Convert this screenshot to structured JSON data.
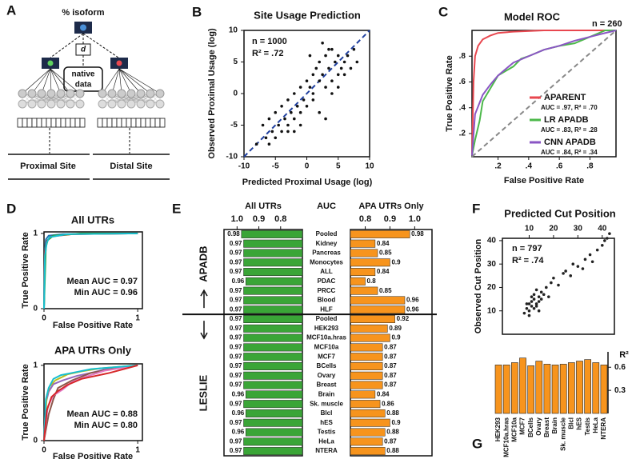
{
  "diagram": {
    "panel": "A",
    "title": "% isoform",
    "d": "d",
    "native_data": [
      "native",
      "data"
    ],
    "proximal": "Proximal Site",
    "distal": "Distal Site"
  },
  "chart_data": [
    {
      "panel": "B",
      "type": "scatter",
      "title": "Site Usage Prediction",
      "xlabel": "Predicted Proximal Usage (log)",
      "ylabel": "Observed Proximal Usage (log)",
      "annotations": [
        "n = 1000",
        "R² = .72"
      ],
      "color": "#111111",
      "diagonal": true,
      "diagonal_color": "#1f3f9f",
      "xlim": [
        -10,
        10
      ],
      "ylim": [
        -10,
        10
      ],
      "xticks": [
        -10,
        -5,
        0,
        5,
        10
      ],
      "yticks": [
        -10,
        -5,
        0,
        5,
        10
      ],
      "x": [
        -8,
        -7,
        -6.5,
        -6,
        -5.5,
        -5,
        -5,
        -4.5,
        -4,
        -4,
        -3.5,
        -3,
        -3,
        -2.5,
        -2,
        -2,
        -1.5,
        -1,
        -1,
        -0.5,
        0,
        0,
        0.5,
        1,
        1,
        1.5,
        2,
        2,
        2.5,
        3,
        3,
        3.5,
        4,
        4,
        4.5,
        5,
        5,
        5.5,
        6,
        6.5,
        7,
        7.5,
        8,
        -3,
        -1,
        1,
        2,
        3,
        4,
        5,
        2.5,
        3.5,
        6,
        -6,
        -2,
        0.5
      ],
      "values": [
        -8,
        -5,
        -7,
        -4,
        -6,
        -3,
        -7,
        -5,
        -2,
        -6,
        -4,
        -1,
        -5,
        -3,
        0,
        -4,
        -2,
        1,
        -3,
        -1,
        2,
        -2,
        1,
        3,
        0,
        4,
        2,
        5,
        3,
        6,
        1,
        4,
        7,
        2,
        5,
        3,
        6,
        4,
        5,
        6,
        4,
        7,
        5,
        -6,
        -5,
        -1,
        -3,
        -4,
        0,
        1,
        8,
        7,
        3,
        -8,
        -6,
        6
      ]
    },
    {
      "panel": "C",
      "type": "line",
      "title": "Model ROC",
      "xlabel": "False Positive Rate",
      "ylabel": "True Positive Rate",
      "annotations": [
        "n = 260"
      ],
      "diagonal": true,
      "diagonal_color": "#888888",
      "xlim": [
        0.03,
        0.97
      ],
      "ylim": [
        0.02,
        1.0
      ],
      "xticks": [
        {
          "value": 0.2,
          "label": ".2"
        },
        {
          "value": 0.4,
          "label": ".4"
        },
        {
          "value": 0.6,
          "label": ".6"
        },
        {
          "value": 0.8,
          "label": ".8"
        }
      ],
      "yticks": [
        {
          "value": 0.2,
          "label": ".2"
        },
        {
          "value": 0.4,
          "label": ".4"
        },
        {
          "value": 0.6,
          "label": ".6"
        },
        {
          "value": 0.8,
          "label": ".8"
        }
      ],
      "series": [
        {
          "name": "APARENT",
          "note": "AUC = .97, R² = .70",
          "color": "#e8474f",
          "x": [
            0.03,
            0.04,
            0.05,
            0.07,
            0.1,
            0.15,
            0.2,
            0.3,
            0.5,
            0.97
          ],
          "values": [
            0.03,
            0.6,
            0.8,
            0.88,
            0.93,
            0.96,
            0.98,
            0.99,
            1,
            1
          ]
        },
        {
          "name": "LR APADB",
          "note": "AUC = .83, R² = .28",
          "color": "#4cb84a",
          "x": [
            0.03,
            0.05,
            0.08,
            0.1,
            0.15,
            0.2,
            0.3,
            0.35,
            0.4,
            0.5,
            0.6,
            0.7,
            0.8,
            0.9,
            0.97
          ],
          "values": [
            0.03,
            0.15,
            0.3,
            0.45,
            0.55,
            0.65,
            0.72,
            0.78,
            0.8,
            0.85,
            0.88,
            0.9,
            0.95,
            1,
            1
          ]
        },
        {
          "name": "CNN APADB",
          "note": "AUC = .84, R² = .34",
          "color": "#8a55c4",
          "x": [
            0.03,
            0.05,
            0.1,
            0.15,
            0.2,
            0.3,
            0.4,
            0.5,
            0.6,
            0.7,
            0.8,
            0.9,
            0.97
          ],
          "values": [
            0.03,
            0.35,
            0.5,
            0.58,
            0.65,
            0.75,
            0.8,
            0.85,
            0.88,
            0.92,
            0.95,
            0.98,
            1
          ]
        }
      ]
    },
    {
      "panel": "D",
      "type": "line",
      "title": "All UTRs",
      "title_color": "#3aa537",
      "xlabel": "False Positive Rate",
      "ylabel": "True Positive Rate",
      "annotations": [
        "Mean AUC = 0.97",
        "Min AUC = 0.96"
      ],
      "xlim": [
        0,
        1.05
      ],
      "ylim": [
        0,
        1.02
      ],
      "xticks": [
        0,
        1
      ],
      "yticks": [
        0,
        1
      ],
      "series": [
        {
          "color": "#1f77b4",
          "x": [
            0,
            0.01,
            0.02,
            0.05,
            0.2,
            1
          ],
          "values": [
            0,
            0.8,
            0.92,
            0.97,
            0.99,
            1
          ]
        },
        {
          "color": "#d62728",
          "x": [
            0,
            0.01,
            0.03,
            0.08,
            0.3,
            1
          ],
          "values": [
            0,
            0.75,
            0.9,
            0.96,
            0.99,
            1
          ]
        },
        {
          "color": "#2ca02c",
          "x": [
            0,
            0.02,
            0.04,
            0.1,
            0.4,
            1
          ],
          "values": [
            0,
            0.82,
            0.91,
            0.97,
            1,
            1
          ]
        },
        {
          "color": "#17becf",
          "x": [
            0,
            0.01,
            0.03,
            0.06,
            0.25,
            1
          ],
          "values": [
            0,
            0.7,
            0.88,
            0.95,
            0.99,
            1
          ]
        }
      ]
    },
    {
      "type": "line",
      "title": "APA UTRs Only",
      "title_color": "#f7941d",
      "xlabel": "False Positive Rate",
      "ylabel": "True Positive Rate",
      "annotations": [
        "Mean AUC = 0.88",
        "Min AUC = 0.80"
      ],
      "xlim": [
        0,
        1.05
      ],
      "ylim": [
        0,
        1.02
      ],
      "xticks": [
        0,
        1
      ],
      "yticks": [
        0,
        1
      ],
      "series": [
        {
          "color": "#9467bd",
          "x": [
            0,
            0.02,
            0.05,
            0.1,
            0.2,
            0.35,
            0.5,
            0.7,
            1
          ],
          "values": [
            0,
            0.5,
            0.65,
            0.75,
            0.8,
            0.86,
            0.9,
            0.96,
            1
          ]
        },
        {
          "color": "#8c564b",
          "x": [
            0,
            0.05,
            0.1,
            0.15,
            0.3,
            0.5,
            0.8,
            1
          ],
          "values": [
            0,
            0.35,
            0.55,
            0.7,
            0.8,
            0.9,
            0.97,
            1
          ]
        },
        {
          "color": "#bcbd22",
          "x": [
            0,
            0.03,
            0.06,
            0.12,
            0.25,
            0.4,
            0.6,
            1
          ],
          "values": [
            0,
            0.6,
            0.72,
            0.8,
            0.88,
            0.92,
            0.96,
            1
          ]
        },
        {
          "color": "#e377c2",
          "x": [
            0,
            0.04,
            0.1,
            0.2,
            0.3,
            0.45,
            0.65,
            1
          ],
          "values": [
            0,
            0.45,
            0.6,
            0.68,
            0.78,
            0.85,
            0.93,
            1
          ]
        },
        {
          "color": "#17becf",
          "x": [
            0,
            0.02,
            0.05,
            0.1,
            0.18,
            0.3,
            0.5,
            1
          ],
          "values": [
            0,
            0.55,
            0.7,
            0.82,
            0.87,
            0.9,
            0.95,
            1
          ]
        },
        {
          "color": "#d62728",
          "x": [
            0,
            0.03,
            0.08,
            0.15,
            0.25,
            0.4,
            0.7,
            1
          ],
          "values": [
            0,
            0.4,
            0.58,
            0.66,
            0.74,
            0.82,
            0.9,
            1
          ]
        }
      ]
    },
    {
      "panel": "E",
      "type": "mirrored_bar",
      "header": "AUC",
      "left": {
        "title": "All UTRs",
        "title_color": "#3aa537",
        "color": "#3aa537",
        "xlim": [
          1.06,
          0.7
        ],
        "xticks": [
          {
            "value": 1,
            "label": "1.0"
          },
          0.9,
          0.8
        ]
      },
      "right": {
        "title": "APA UTRs Only",
        "title_color": "#f7941d",
        "color": "#f7941d",
        "xlim": [
          0.74,
          1.07
        ],
        "xticks": [
          0.8,
          0.9,
          {
            "value": 1,
            "label": "1.0"
          }
        ]
      },
      "groups": [
        {
          "name": "APADB",
          "categories": [
            "Pooled",
            "Kidney",
            "Pancreas",
            "Monocytes",
            "ALL",
            "PDAC",
            "PRCC",
            "Blood",
            "HLF"
          ],
          "left_values": [
            0.98,
            0.97,
            0.97,
            0.97,
            0.97,
            0.96,
            0.97,
            0.97,
            0.97
          ],
          "right_values": [
            0.98,
            0.84,
            0.85,
            0.9,
            0.84,
            0.8,
            0.85,
            0.96,
            0.96
          ]
        },
        {
          "name": "LESLIE",
          "categories": [
            "Pooled",
            "HEK293",
            "MCF10a.hras",
            "MCF10a",
            "MCF7",
            "BCells",
            "Ovary",
            "Breast",
            "Brain",
            "Sk. muscle",
            "Blcl",
            "hES",
            "Testis",
            "HeLa",
            "NTERA"
          ],
          "left_values": [
            0.97,
            0.97,
            0.97,
            0.97,
            0.97,
            0.97,
            0.97,
            0.97,
            0.96,
            0.97,
            0.96,
            0.97,
            0.96,
            0.97,
            0.97
          ],
          "right_values": [
            0.92,
            0.89,
            0.9,
            0.87,
            0.87,
            0.87,
            0.87,
            0.87,
            0.84,
            0.86,
            0.88,
            0.9,
            0.88,
            0.87,
            0.88
          ]
        }
      ]
    },
    {
      "panel": "F",
      "type": "scatter",
      "title": "Predicted Cut Position",
      "ylabel": "Observed Cut Position",
      "annotations": [
        "n = 797",
        "R² = .74"
      ],
      "color": "#222222",
      "xlim": [
        -1,
        45
      ],
      "ylim": [
        0,
        41
      ],
      "xticks": [
        10,
        20,
        30,
        40
      ],
      "yticks": [
        10,
        20,
        30,
        40
      ],
      "x": [
        8,
        9,
        10,
        10,
        11,
        11,
        12,
        12,
        13,
        13,
        14,
        14,
        15,
        15,
        16,
        17,
        18,
        19,
        20,
        22,
        24,
        25,
        27,
        28,
        30,
        32,
        33,
        35,
        36,
        38,
        40,
        41,
        42,
        43,
        10,
        12,
        14,
        9,
        11,
        13
      ],
      "values": [
        9,
        11,
        10,
        13,
        12,
        14,
        11,
        15,
        13,
        12,
        16,
        14,
        15,
        18,
        17,
        20,
        16,
        22,
        24,
        21,
        26,
        27,
        25,
        30,
        29,
        28,
        32,
        34,
        31,
        36,
        38,
        40,
        41,
        43,
        8,
        17,
        10,
        13,
        16,
        19
      ]
    },
    {
      "panel": "G",
      "type": "bar",
      "ylabel": "R²",
      "color": "#f7941d",
      "ylim": [
        0,
        0.8
      ],
      "yticks": [
        0.3,
        0.6
      ],
      "categories": [
        "HEK293",
        "MCF10a.hras",
        "MCF10a",
        "MCF7",
        "BCells",
        "Ovary",
        "Breast",
        "Brain",
        "Sk. muscle",
        "Blcl",
        "hES",
        "Testis",
        "HeLa",
        "NTERA"
      ],
      "values": [
        0.63,
        0.63,
        0.66,
        0.72,
        0.62,
        0.68,
        0.64,
        0.63,
        0.64,
        0.66,
        0.68,
        0.7,
        0.66,
        0.63
      ]
    }
  ]
}
